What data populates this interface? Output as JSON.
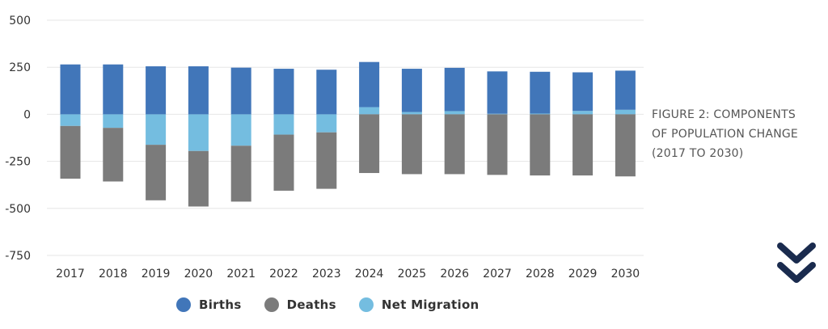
{
  "caption": {
    "line1": "FIGURE 2: COMPONENTS",
    "line2": "OF POPULATION CHANGE",
    "line3": "(2017 TO 2030)"
  },
  "scroll_icon": "double-chevron-down-icon",
  "colors": {
    "births": "#4176b9",
    "deaths": "#7b7b7b",
    "net_migration": "#74bde0",
    "grid": "#e6e6e6",
    "nav_icon": "#1a2b4e"
  },
  "chart_data": {
    "type": "bar",
    "stacked": true,
    "categories": [
      "2017",
      "2018",
      "2019",
      "2020",
      "2021",
      "2022",
      "2023",
      "2024",
      "2025",
      "2026",
      "2027",
      "2028",
      "2029",
      "2030"
    ],
    "series": [
      {
        "name": "Births",
        "color": "#4176b9",
        "values": [
          265,
          265,
          255,
          255,
          248,
          242,
          237,
          240,
          230,
          230,
          225,
          222,
          205,
          208
        ]
      },
      {
        "name": "Deaths",
        "color": "#7b7b7b",
        "values": [
          -280,
          -285,
          -295,
          -295,
          -297,
          -298,
          -300,
          -312,
          -318,
          -318,
          -322,
          -325,
          -325,
          -330
        ]
      },
      {
        "name": "Net Migration",
        "color": "#74bde0",
        "values": [
          -62,
          -72,
          -162,
          -195,
          -167,
          -108,
          -96,
          38,
          12,
          17,
          3,
          4,
          18,
          24
        ]
      }
    ],
    "yticks": [
      500,
      250,
      0,
      -250,
      -500,
      -750
    ],
    "ytick_labels": [
      "500",
      "250",
      "0",
      "-250",
      "-500",
      "-750"
    ],
    "ylim": [
      -750,
      500
    ],
    "grid": true,
    "legend_position": "bottom"
  }
}
